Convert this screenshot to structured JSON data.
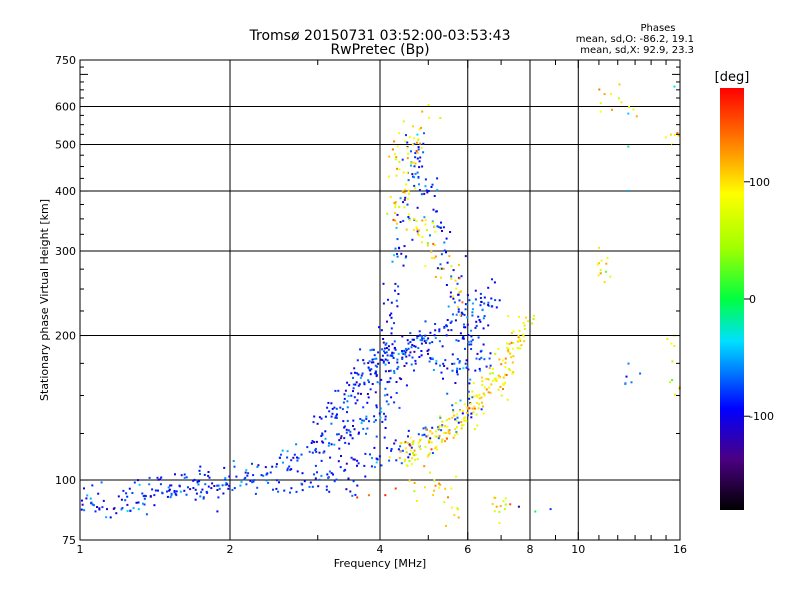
{
  "chart_data": {
    "type": "scatter",
    "title_line1": "Tromsø 20150731 03:52:00-03:53:43",
    "title_line2": "RwPretec (Bp)",
    "stats": {
      "heading": "Phases",
      "line_o": "mean, sd,O: -86.2, 19.1",
      "line_x": "mean, sd,X:  92.9, 23.3"
    },
    "xlabel": "Frequency [MHz]",
    "ylabel": "Stationary phase Virtual Height [km]",
    "x_scale": "log",
    "y_scale": "log",
    "xlim": [
      1,
      16
    ],
    "ylim": [
      75,
      750
    ],
    "x_ticks": [
      {
        "value": 1,
        "label": "1"
      },
      {
        "value": 2,
        "label": "2"
      },
      {
        "value": 4,
        "label": "4"
      },
      {
        "value": 6,
        "label": "6"
      },
      {
        "value": 8,
        "label": "8"
      },
      {
        "value": 10,
        "label": "10"
      },
      {
        "value": 16,
        "label": "16"
      }
    ],
    "y_ticks": [
      {
        "value": 75,
        "label": "75"
      },
      {
        "value": 100,
        "label": "100"
      },
      {
        "value": 200,
        "label": "200"
      },
      {
        "value": 300,
        "label": "300"
      },
      {
        "value": 400,
        "label": "400"
      },
      {
        "value": 500,
        "label": "500"
      },
      {
        "value": 600,
        "label": "600"
      },
      {
        "value": 750,
        "label": "750"
      }
    ],
    "x_grid": [
      2,
      4,
      6,
      8,
      10
    ],
    "y_grid": [
      100,
      200,
      300,
      400,
      500,
      600
    ],
    "colorbar": {
      "unit": "[deg]",
      "min": -180,
      "max": 180,
      "ticks": [
        {
          "value": 100,
          "label": "100"
        },
        {
          "value": 0,
          "label": "0"
        },
        {
          "value": -100,
          "label": "-100"
        }
      ]
    },
    "series": [
      {
        "phase_mean": -86.2,
        "phase_sd": 19.1,
        "points": [
          [
            1.0,
            90
          ],
          [
            1.04,
            89
          ],
          [
            1.08,
            88
          ],
          [
            1.12,
            90
          ],
          [
            1.16,
            89
          ],
          [
            1.2,
            91
          ],
          [
            1.25,
            89
          ],
          [
            1.3,
            92
          ],
          [
            1.35,
            92
          ],
          [
            1.4,
            95
          ],
          [
            1.45,
            97
          ],
          [
            1.5,
            94
          ],
          [
            1.55,
            96
          ],
          [
            1.6,
            95
          ],
          [
            1.65,
            97
          ],
          [
            1.7,
            96
          ],
          [
            1.75,
            99
          ],
          [
            1.8,
            100
          ],
          [
            1.85,
            98
          ],
          [
            1.9,
            97
          ],
          [
            1.95,
            99
          ],
          [
            2.0,
            98
          ],
          [
            2.1,
            99
          ],
          [
            2.2,
            101
          ],
          [
            2.3,
            103
          ],
          [
            2.4,
            106
          ],
          [
            2.5,
            108
          ],
          [
            2.6,
            110
          ],
          [
            2.7,
            111
          ],
          [
            2.8,
            113
          ],
          [
            2.9,
            115
          ],
          [
            3.0,
            117
          ],
          [
            3.1,
            119
          ],
          [
            3.2,
            121
          ],
          [
            3.3,
            122
          ],
          [
            3.4,
            124
          ],
          [
            3.5,
            126
          ],
          [
            3.6,
            128
          ],
          [
            3.7,
            130
          ],
          [
            3.8,
            131
          ],
          [
            3.9,
            133
          ],
          [
            4.0,
            134
          ],
          [
            2.5,
            96
          ],
          [
            2.7,
            98
          ],
          [
            2.9,
            100
          ],
          [
            3.0,
            102
          ],
          [
            3.2,
            104
          ],
          [
            3.4,
            106
          ],
          [
            3.6,
            108
          ],
          [
            3.8,
            110
          ],
          [
            4.0,
            111
          ],
          [
            4.2,
            113
          ],
          [
            4.4,
            116
          ],
          [
            4.6,
            119
          ],
          [
            4.8,
            122
          ],
          [
            5.0,
            126
          ],
          [
            5.3,
            130
          ],
          [
            5.6,
            135
          ],
          [
            5.9,
            140
          ],
          [
            6.2,
            147
          ],
          [
            3.0,
            130
          ],
          [
            3.1,
            135
          ],
          [
            3.2,
            140
          ],
          [
            3.3,
            143
          ],
          [
            3.4,
            146
          ],
          [
            3.5,
            150
          ],
          [
            3.6,
            155
          ],
          [
            3.7,
            160
          ],
          [
            3.8,
            165
          ],
          [
            3.9,
            170
          ],
          [
            4.0,
            175
          ],
          [
            4.1,
            178
          ],
          [
            4.2,
            180
          ],
          [
            4.3,
            185
          ],
          [
            4.4,
            188
          ],
          [
            4.5,
            190
          ],
          [
            4.6,
            192
          ],
          [
            4.8,
            196
          ],
          [
            5.0,
            200
          ],
          [
            5.2,
            205
          ],
          [
            5.4,
            210
          ],
          [
            5.6,
            215
          ],
          [
            5.8,
            220
          ],
          [
            6.0,
            225
          ],
          [
            6.2,
            230
          ],
          [
            6.4,
            235
          ],
          [
            6.6,
            240
          ],
          [
            6.8,
            245
          ],
          [
            3.5,
            150
          ],
          [
            3.6,
            158
          ],
          [
            3.7,
            165
          ],
          [
            3.8,
            172
          ],
          [
            3.9,
            178
          ],
          [
            4.0,
            185
          ],
          [
            4.05,
            160
          ],
          [
            4.1,
            170
          ],
          [
            4.15,
            190
          ],
          [
            4.2,
            210
          ],
          [
            4.25,
            230
          ],
          [
            4.3,
            250
          ],
          [
            4.35,
            280
          ],
          [
            4.4,
            300
          ],
          [
            4.45,
            330
          ],
          [
            4.5,
            360
          ],
          [
            4.55,
            390
          ],
          [
            4.6,
            420
          ],
          [
            4.65,
            450
          ],
          [
            4.7,
            480
          ],
          [
            4.75,
            500
          ],
          [
            4.8,
            450
          ],
          [
            4.9,
            420
          ],
          [
            5.0,
            400
          ],
          [
            5.1,
            370
          ],
          [
            5.2,
            340
          ],
          [
            5.3,
            320
          ],
          [
            5.4,
            300
          ],
          [
            5.5,
            270
          ],
          [
            5.6,
            250
          ],
          [
            5.7,
            230
          ],
          [
            5.8,
            215
          ],
          [
            5.9,
            205
          ],
          [
            6.0,
            195
          ],
          [
            6.2,
            200
          ],
          [
            6.4,
            210
          ],
          [
            6.6,
            225
          ],
          [
            4.1,
            140
          ],
          [
            4.2,
            150
          ],
          [
            4.3,
            160
          ],
          [
            4.4,
            170
          ],
          [
            4.5,
            175
          ],
          [
            4.6,
            182
          ],
          [
            4.7,
            188
          ],
          [
            4.8,
            195
          ],
          [
            4.9,
            200
          ],
          [
            5.0,
            180
          ],
          [
            5.2,
            175
          ],
          [
            5.4,
            170
          ],
          [
            5.6,
            168
          ],
          [
            5.8,
            170
          ],
          [
            6.0,
            172
          ],
          [
            6.2,
            175
          ],
          [
            6.4,
            178
          ],
          [
            6.6,
            180
          ],
          [
            12.6,
            160
          ],
          [
            1.3,
            90
          ],
          [
            1.5,
            95
          ],
          [
            1.7,
            98
          ],
          [
            2.2,
            97
          ],
          [
            3.2,
            99
          ],
          [
            3.5,
            98
          ]
        ]
      },
      {
        "phase_mean": 92.9,
        "phase_sd": 23.3,
        "points": [
          [
            4.4,
            110
          ],
          [
            4.5,
            112
          ],
          [
            4.6,
            115
          ],
          [
            4.8,
            118
          ],
          [
            5.0,
            121
          ],
          [
            5.2,
            125
          ],
          [
            5.4,
            128
          ],
          [
            5.6,
            132
          ],
          [
            5.8,
            136
          ],
          [
            6.0,
            140
          ],
          [
            6.2,
            145
          ],
          [
            6.4,
            150
          ],
          [
            6.6,
            155
          ],
          [
            6.8,
            162
          ],
          [
            7.0,
            170
          ],
          [
            7.2,
            180
          ],
          [
            7.4,
            190
          ],
          [
            7.6,
            200
          ],
          [
            7.8,
            210
          ],
          [
            8.0,
            215
          ],
          [
            4.6,
            112
          ],
          [
            4.8,
            115
          ],
          [
            5.0,
            118
          ],
          [
            5.2,
            122
          ],
          [
            5.4,
            125
          ],
          [
            5.6,
            128
          ],
          [
            5.8,
            132
          ],
          [
            6.0,
            137
          ],
          [
            6.2,
            142
          ],
          [
            6.4,
            147
          ],
          [
            6.6,
            152
          ],
          [
            6.8,
            158
          ],
          [
            7.0,
            165
          ],
          [
            7.2,
            175
          ],
          [
            7.4,
            185
          ],
          [
            7.6,
            195
          ],
          [
            4.3,
            360
          ],
          [
            4.4,
            380
          ],
          [
            4.5,
            400
          ],
          [
            4.6,
            420
          ],
          [
            4.7,
            350
          ],
          [
            4.8,
            330
          ],
          [
            4.9,
            310
          ],
          [
            5.0,
            340
          ],
          [
            5.2,
            300
          ],
          [
            5.4,
            280
          ],
          [
            5.6,
            260
          ],
          [
            5.8,
            240
          ],
          [
            4.6,
            520
          ],
          [
            4.7,
            500
          ],
          [
            4.8,
            480
          ],
          [
            5.0,
            560
          ],
          [
            4.2,
            480
          ],
          [
            4.3,
            450
          ],
          [
            11.3,
            610
          ],
          [
            12.5,
            610
          ],
          [
            11.2,
            290
          ],
          [
            11.3,
            270
          ],
          [
            15.6,
            530
          ],
          [
            15.5,
            190
          ],
          [
            15.6,
            155
          ],
          [
            4.8,
            97
          ],
          [
            5.2,
            95
          ],
          [
            5.5,
            96
          ],
          [
            6.8,
            90
          ],
          [
            7.2,
            88
          ],
          [
            5.6,
            86
          ]
        ]
      }
    ],
    "isolated_points": [
      {
        "f": 12.6,
        "h": 580,
        "phase": -40
      },
      {
        "f": 12.6,
        "h": 495,
        "phase": -20
      },
      {
        "f": 12.6,
        "h": 400,
        "phase": -50
      },
      {
        "f": 15.6,
        "h": 660,
        "phase": -30
      },
      {
        "f": 7.6,
        "h": 88,
        "phase": -120
      },
      {
        "f": 8.2,
        "h": 86,
        "phase": 0
      },
      {
        "f": 8.8,
        "h": 87,
        "phase": -80
      },
      {
        "f": 7.3,
        "h": 89,
        "phase": 150
      },
      {
        "f": 3.6,
        "h": 92,
        "phase": 160
      },
      {
        "f": 3.8,
        "h": 93,
        "phase": 140
      },
      {
        "f": 4.1,
        "h": 93,
        "phase": 170
      },
      {
        "f": 4.3,
        "h": 96,
        "phase": 160
      },
      {
        "f": 4.5,
        "h": 120,
        "phase": 150
      },
      {
        "f": 4.6,
        "h": 118,
        "phase": 175
      }
    ]
  }
}
